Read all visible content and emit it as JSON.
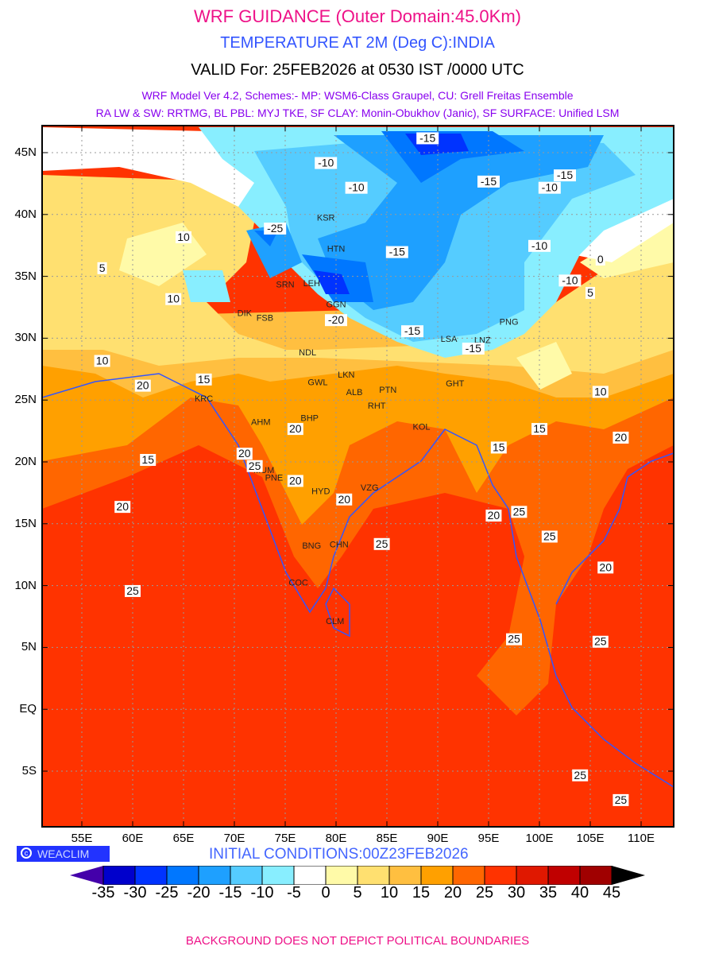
{
  "header": {
    "title": "WRF GUIDANCE (Outer Domain:45.0Km)",
    "subtitle": "TEMPERATURE AT 2M (Deg C):INDIA",
    "valid": "VALID For: 25FEB2026 at 0530 IST /0000 UTC",
    "model_line1": "WRF Model Ver 4.2, Schemes:- MP: WSM6-Class Graupel, CU: Grell Freitas Ensemble",
    "model_line2": "RA LW & SW: RRTMG, BL PBL: MYJ TKE, SF CLAY: Monin-Obukhov (Janic), SF SURFACE: Unified LSM"
  },
  "axes": {
    "lat_labels": [
      "45N",
      "40N",
      "35N",
      "30N",
      "25N",
      "20N",
      "15N",
      "10N",
      "5N",
      "EQ",
      "5S"
    ],
    "lon_labels": [
      "55E",
      "60E",
      "65E",
      "70E",
      "75E",
      "80E",
      "85E",
      "90E",
      "95E",
      "100E",
      "105E",
      "110E"
    ]
  },
  "stations": [
    {
      "code": "KSR",
      "lon": 79,
      "lat": 39.5
    },
    {
      "code": "HTN",
      "lon": 80,
      "lat": 37
    },
    {
      "code": "LEH",
      "lon": 77.6,
      "lat": 34.2
    },
    {
      "code": "SRN",
      "lon": 75,
      "lat": 34.1
    },
    {
      "code": "GGN",
      "lon": 80,
      "lat": 32.5
    },
    {
      "code": "DIK",
      "lon": 71,
      "lat": 31.8
    },
    {
      "code": "FSB",
      "lon": 73,
      "lat": 31.4
    },
    {
      "code": "NDL",
      "lon": 77.2,
      "lat": 28.6
    },
    {
      "code": "LKN",
      "lon": 81,
      "lat": 26.8
    },
    {
      "code": "GWL",
      "lon": 78.2,
      "lat": 26.2
    },
    {
      "code": "ALB",
      "lon": 81.8,
      "lat": 25.4
    },
    {
      "code": "PTN",
      "lon": 85.1,
      "lat": 25.6
    },
    {
      "code": "RHT",
      "lon": 84,
      "lat": 24.3
    },
    {
      "code": "GHT",
      "lon": 91.7,
      "lat": 26.1
    },
    {
      "code": "KOL",
      "lon": 88.4,
      "lat": 22.6
    },
    {
      "code": "AHM",
      "lon": 72.6,
      "lat": 23
    },
    {
      "code": "BHP",
      "lon": 77.4,
      "lat": 23.3
    },
    {
      "code": "KRC",
      "lon": 67,
      "lat": 24.9
    },
    {
      "code": "MUM",
      "lon": 72.9,
      "lat": 19.1
    },
    {
      "code": "PNE",
      "lon": 73.9,
      "lat": 18.5
    },
    {
      "code": "HYD",
      "lon": 78.5,
      "lat": 17.4
    },
    {
      "code": "VZG",
      "lon": 83.3,
      "lat": 17.7
    },
    {
      "code": "BNG",
      "lon": 77.6,
      "lat": 13
    },
    {
      "code": "CHN",
      "lon": 80.3,
      "lat": 13.1
    },
    {
      "code": "COC",
      "lon": 76.3,
      "lat": 10
    },
    {
      "code": "CLM",
      "lon": 79.9,
      "lat": 6.9
    },
    {
      "code": "LSA",
      "lon": 91.1,
      "lat": 29.7
    },
    {
      "code": "PNG",
      "lon": 97,
      "lat": 31.1
    },
    {
      "code": "LNZ",
      "lon": 94.4,
      "lat": 29.6
    }
  ],
  "contour_labels": [
    {
      "v": "-15",
      "lon": 89,
      "lat": 46
    },
    {
      "v": "-10",
      "lon": 79,
      "lat": 44
    },
    {
      "v": "-10",
      "lon": 82,
      "lat": 42
    },
    {
      "v": "-15",
      "lon": 95,
      "lat": 42.5
    },
    {
      "v": "-15",
      "lon": 102.5,
      "lat": 43
    },
    {
      "v": "-10",
      "lon": 101,
      "lat": 42
    },
    {
      "v": "-25",
      "lon": 74,
      "lat": 38.7
    },
    {
      "v": "-15",
      "lon": 86,
      "lat": 36.8
    },
    {
      "v": "-10",
      "lon": 100,
      "lat": 37.3
    },
    {
      "v": "-10",
      "lon": 103,
      "lat": 34.5
    },
    {
      "v": "-15",
      "lon": 87.5,
      "lat": 30.4
    },
    {
      "v": "-20",
      "lon": 80,
      "lat": 31.3
    },
    {
      "v": "-15",
      "lon": 93.5,
      "lat": 29
    },
    {
      "v": "0",
      "lon": 106,
      "lat": 36.2
    },
    {
      "v": "5",
      "lon": 105,
      "lat": 33.5
    },
    {
      "v": "10",
      "lon": 65,
      "lat": 38
    },
    {
      "v": "10",
      "lon": 64,
      "lat": 33
    },
    {
      "v": "5",
      "lon": 57,
      "lat": 35.5
    },
    {
      "v": "10",
      "lon": 57,
      "lat": 28
    },
    {
      "v": "15",
      "lon": 67,
      "lat": 26.5
    },
    {
      "v": "20",
      "lon": 61,
      "lat": 26
    },
    {
      "v": "10",
      "lon": 106,
      "lat": 25.5
    },
    {
      "v": "15",
      "lon": 100,
      "lat": 22.5
    },
    {
      "v": "20",
      "lon": 108,
      "lat": 21.8
    },
    {
      "v": "15",
      "lon": 61.5,
      "lat": 20
    },
    {
      "v": "20",
      "lon": 71,
      "lat": 20.5
    },
    {
      "v": "25",
      "lon": 72,
      "lat": 19.5
    },
    {
      "v": "20",
      "lon": 76,
      "lat": 22.5
    },
    {
      "v": "15",
      "lon": 96,
      "lat": 21
    },
    {
      "v": "20",
      "lon": 59,
      "lat": 16.2
    },
    {
      "v": "20",
      "lon": 76,
      "lat": 18.3
    },
    {
      "v": "20",
      "lon": 80.8,
      "lat": 16.8
    },
    {
      "v": "20",
      "lon": 95.5,
      "lat": 15.5
    },
    {
      "v": "25",
      "lon": 98,
      "lat": 15.8
    },
    {
      "v": "25",
      "lon": 84.5,
      "lat": 13.2
    },
    {
      "v": "25",
      "lon": 101,
      "lat": 13.8
    },
    {
      "v": "20",
      "lon": 106.5,
      "lat": 11.3
    },
    {
      "v": "25",
      "lon": 60,
      "lat": 9.4
    },
    {
      "v": "25",
      "lon": 97.5,
      "lat": 5.5
    },
    {
      "v": "25",
      "lon": 106,
      "lat": 5.3
    },
    {
      "v": "25",
      "lon": 104,
      "lat": -5.5
    },
    {
      "v": "25",
      "lon": 108,
      "lat": -7.5
    }
  ],
  "colorbar": {
    "labels": [
      "-35",
      "-30",
      "-25",
      "-20",
      "-15",
      "-10",
      "-5",
      "0",
      "5",
      "10",
      "15",
      "20",
      "25",
      "30",
      "35",
      "40",
      "45"
    ],
    "colors": [
      "#0000cc",
      "#0033ff",
      "#0077ff",
      "#1ea0ff",
      "#55ccff",
      "#88eeff",
      "#ffffff",
      "#fffaa8",
      "#ffe070",
      "#ffbf40",
      "#ffa000",
      "#ff6600",
      "#ff3300",
      "#e01800",
      "#c00000",
      "#a00000"
    ],
    "under_color": "#4400aa",
    "over_color": "#000000"
  },
  "logo": "WEACLIM",
  "initial_conditions": "INITIAL CONDITIONS:00Z23FEB2026",
  "footer": "BACKGROUND DOES NOT DEPICT POLITICAL BOUNDARIES"
}
